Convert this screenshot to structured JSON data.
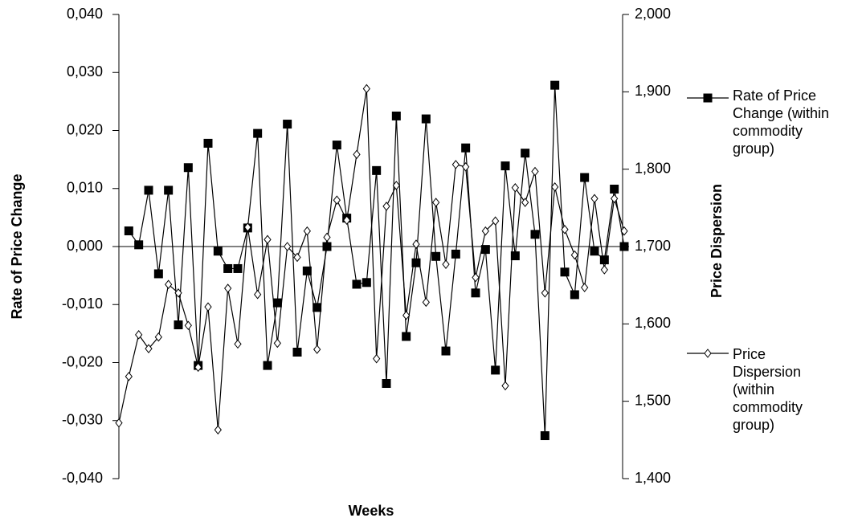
{
  "chart_data": {
    "type": "line",
    "x_label": "Weeks",
    "y_label": "Rate of Price Change",
    "y2_label": "Price Dispersion",
    "categories": [
      null,
      null,
      null,
      null,
      null,
      null,
      null,
      null,
      null,
      null,
      null,
      null,
      null,
      null,
      null,
      null,
      null,
      null,
      null,
      null,
      null,
      null,
      null,
      null,
      null,
      null,
      null,
      null,
      null,
      null,
      null,
      null,
      null,
      null,
      null,
      null,
      null,
      null,
      null,
      null,
      null,
      null,
      null,
      null,
      null,
      null,
      null,
      null,
      null,
      null,
      null,
      null
    ],
    "ylim": [
      -0.04,
      0.04
    ],
    "yticks": [
      {
        "value": -0.04,
        "label": "-0,040"
      },
      {
        "value": -0.03,
        "label": "-0,030"
      },
      {
        "value": -0.02,
        "label": "-0,020"
      },
      {
        "value": -0.01,
        "label": "-0,010"
      },
      {
        "value": 0,
        "label": "0,000"
      },
      {
        "value": 0.01,
        "label": "0,010"
      },
      {
        "value": 0.02,
        "label": "0,020"
      },
      {
        "value": 0.03,
        "label": "0,030"
      },
      {
        "value": 0.04,
        "label": "0,040"
      }
    ],
    "y2lim": [
      1.4,
      2.0
    ],
    "y2ticks": [
      {
        "value": 1.4,
        "label": "1,400"
      },
      {
        "value": 1.5,
        "label": "1,500"
      },
      {
        "value": 1.6,
        "label": "1,600"
      },
      {
        "value": 1.7,
        "label": "1,700"
      },
      {
        "value": 1.8,
        "label": "1,800"
      },
      {
        "value": 1.9,
        "label": "1,900"
      },
      {
        "value": 2.0,
        "label": "2,000"
      }
    ],
    "series": [
      {
        "name": "Rate of Price Change (within commodity group)",
        "color": "#000000",
        "marker": "square",
        "values": [
          null,
          0.0027,
          0.0003,
          0.0097,
          -0.0047,
          0.0097,
          -0.0135,
          0.0136,
          -0.0205,
          0.0178,
          -0.0008,
          -0.0038,
          -0.0038,
          0.0032,
          0.0195,
          -0.0205,
          -0.0097,
          0.0211,
          -0.0182,
          -0.0042,
          -0.0105,
          0.0,
          0.0175,
          0.0049,
          -0.0065,
          -0.0062,
          0.0131,
          -0.0236,
          0.0225,
          -0.0155,
          -0.0028,
          0.022,
          -0.0017,
          -0.018,
          -0.0013,
          0.017,
          -0.008,
          -0.0005,
          -0.0213,
          0.0139,
          -0.0016,
          0.0161,
          0.0021,
          -0.0326,
          0.0278,
          -0.0044,
          -0.0083,
          0.0119,
          -0.0008,
          -0.0023,
          0.0099,
          0.0
        ]
      },
      {
        "name": "Price Dispersion (within commodity group)",
        "color": "#000000",
        "marker": "diamond",
        "axis": "y2",
        "values": [
          1.472,
          1.532,
          1.586,
          1.568,
          1.583,
          1.651,
          1.64,
          1.598,
          1.544,
          1.622,
          1.463,
          1.646,
          1.574,
          1.725,
          1.638,
          1.709,
          1.575,
          1.7,
          1.686,
          1.72,
          1.567,
          1.712,
          1.76,
          1.734,
          1.819,
          1.904,
          1.555,
          1.752,
          1.779,
          1.611,
          1.703,
          1.628,
          1.757,
          1.677,
          1.806,
          1.803,
          1.66,
          1.72,
          1.733,
          1.52,
          1.776,
          1.757,
          1.797,
          1.64,
          1.777,
          1.722,
          1.689,
          1.647,
          1.762,
          1.67,
          1.762,
          1.72
        ]
      }
    ]
  }
}
